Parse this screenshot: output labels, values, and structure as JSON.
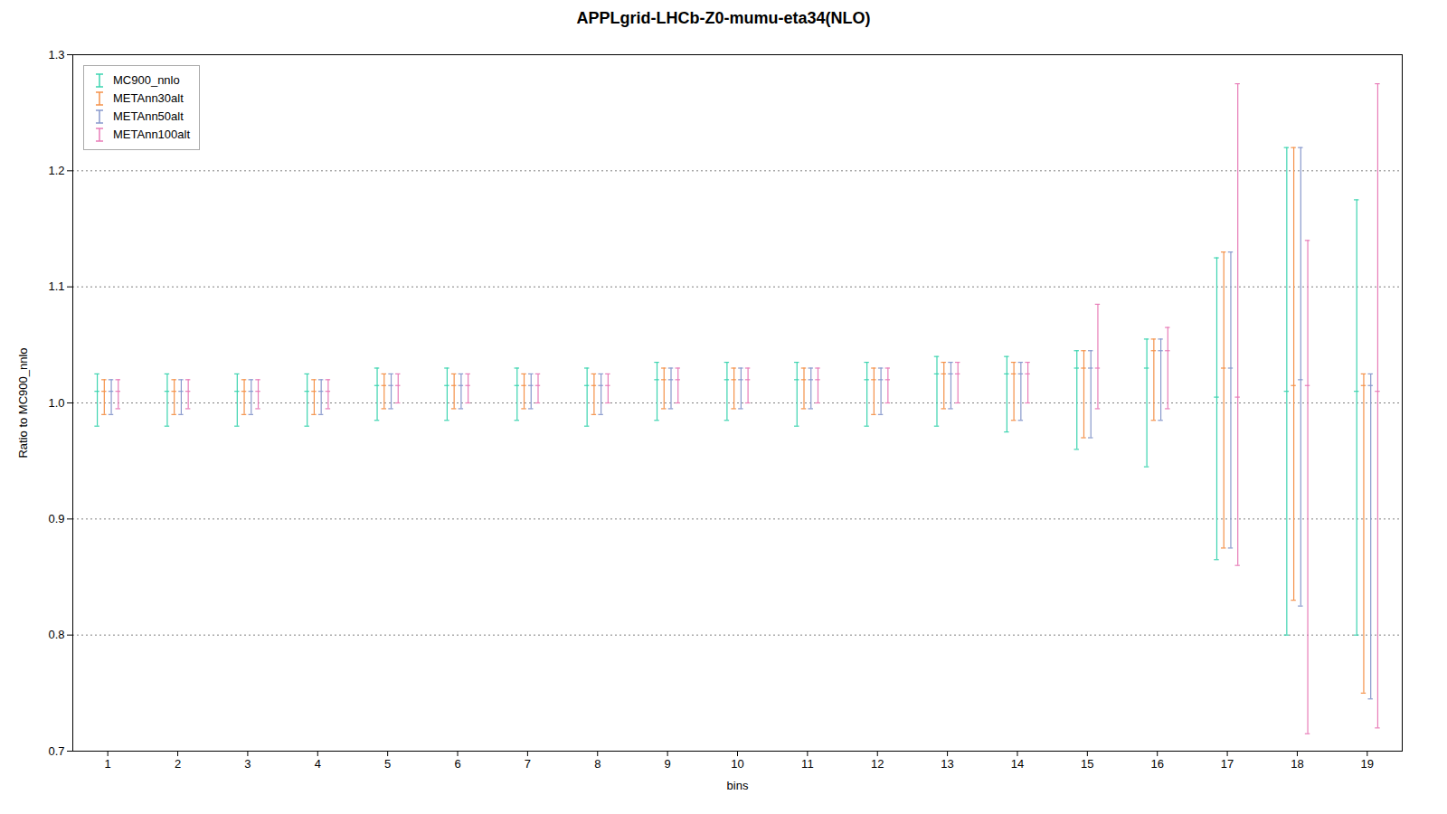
{
  "chart_data": {
    "type": "errorbar",
    "title": "APPLgrid-LHCb-Z0-mumu-eta34(NLO)",
    "xlabel": "bins",
    "ylabel": "Ratio to MC900_nnlo",
    "x": [
      1,
      2,
      3,
      4,
      5,
      6,
      7,
      8,
      9,
      10,
      11,
      12,
      13,
      14,
      15,
      16,
      17,
      18,
      19
    ],
    "xlim": [
      0.5,
      19.5
    ],
    "xticks": [
      1,
      2,
      3,
      4,
      5,
      6,
      7,
      8,
      9,
      10,
      11,
      12,
      13,
      14,
      15,
      16,
      17,
      18,
      19
    ],
    "ylim": [
      0.7,
      1.3
    ],
    "yticks": [
      0.7,
      0.8,
      0.9,
      {
        "value": 1.0,
        "label": "1.0"
      },
      1.1,
      1.2,
      1.3
    ],
    "grid": "y",
    "legend": "upper left",
    "series": [
      {
        "name": "MC900_nnlo",
        "color": "#3dd4b0",
        "values": [
          1.01,
          1.01,
          1.01,
          1.01,
          1.015,
          1.015,
          1.015,
          1.015,
          1.02,
          1.02,
          1.02,
          1.02,
          1.025,
          1.025,
          1.03,
          1.03,
          1.005,
          1.01,
          1.01
        ],
        "err_low": [
          0.03,
          0.03,
          0.03,
          0.03,
          0.03,
          0.03,
          0.03,
          0.035,
          0.035,
          0.035,
          0.04,
          0.04,
          0.045,
          0.05,
          0.07,
          0.085,
          0.14,
          0.21,
          0.21
        ],
        "err_high": [
          0.015,
          0.015,
          0.015,
          0.015,
          0.015,
          0.015,
          0.015,
          0.015,
          0.015,
          0.015,
          0.015,
          0.015,
          0.015,
          0.015,
          0.015,
          0.025,
          0.12,
          0.21,
          0.165
        ]
      },
      {
        "name": "METAnn30alt",
        "color": "#f4924a",
        "values": [
          1.01,
          1.01,
          1.01,
          1.01,
          1.015,
          1.015,
          1.015,
          1.015,
          1.02,
          1.02,
          1.02,
          1.02,
          1.025,
          1.025,
          1.03,
          1.045,
          1.03,
          1.015,
          1.015
        ],
        "err_low": [
          0.02,
          0.02,
          0.02,
          0.02,
          0.02,
          0.02,
          0.02,
          0.025,
          0.025,
          0.025,
          0.025,
          0.03,
          0.03,
          0.04,
          0.06,
          0.06,
          0.155,
          0.185,
          0.265
        ],
        "err_high": [
          0.01,
          0.01,
          0.01,
          0.01,
          0.01,
          0.01,
          0.01,
          0.01,
          0.01,
          0.01,
          0.01,
          0.01,
          0.01,
          0.01,
          0.015,
          0.01,
          0.1,
          0.205,
          0.01
        ]
      },
      {
        "name": "METAnn50alt",
        "color": "#8899cc",
        "values": [
          1.01,
          1.01,
          1.01,
          1.01,
          1.015,
          1.015,
          1.015,
          1.015,
          1.02,
          1.02,
          1.02,
          1.02,
          1.025,
          1.025,
          1.03,
          1.045,
          1.03,
          1.02,
          1.015
        ],
        "err_low": [
          0.02,
          0.02,
          0.02,
          0.02,
          0.02,
          0.02,
          0.02,
          0.025,
          0.025,
          0.025,
          0.025,
          0.03,
          0.03,
          0.04,
          0.06,
          0.06,
          0.155,
          0.195,
          0.27
        ],
        "err_high": [
          0.01,
          0.01,
          0.01,
          0.01,
          0.01,
          0.01,
          0.01,
          0.01,
          0.01,
          0.01,
          0.01,
          0.01,
          0.01,
          0.01,
          0.015,
          0.01,
          0.1,
          0.2,
          0.01
        ]
      },
      {
        "name": "METAnn100alt",
        "color": "#e87db8",
        "values": [
          1.01,
          1.01,
          1.01,
          1.01,
          1.015,
          1.015,
          1.015,
          1.015,
          1.02,
          1.02,
          1.02,
          1.02,
          1.025,
          1.025,
          1.03,
          1.045,
          1.005,
          1.015,
          1.01
        ],
        "err_low": [
          0.015,
          0.015,
          0.015,
          0.015,
          0.015,
          0.015,
          0.015,
          0.015,
          0.02,
          0.02,
          0.02,
          0.02,
          0.025,
          0.025,
          0.035,
          0.05,
          0.145,
          0.3,
          0.29
        ],
        "err_high": [
          0.01,
          0.01,
          0.01,
          0.01,
          0.01,
          0.01,
          0.01,
          0.01,
          0.01,
          0.01,
          0.01,
          0.01,
          0.01,
          0.01,
          0.055,
          0.02,
          0.27,
          0.125,
          0.265
        ]
      }
    ]
  }
}
